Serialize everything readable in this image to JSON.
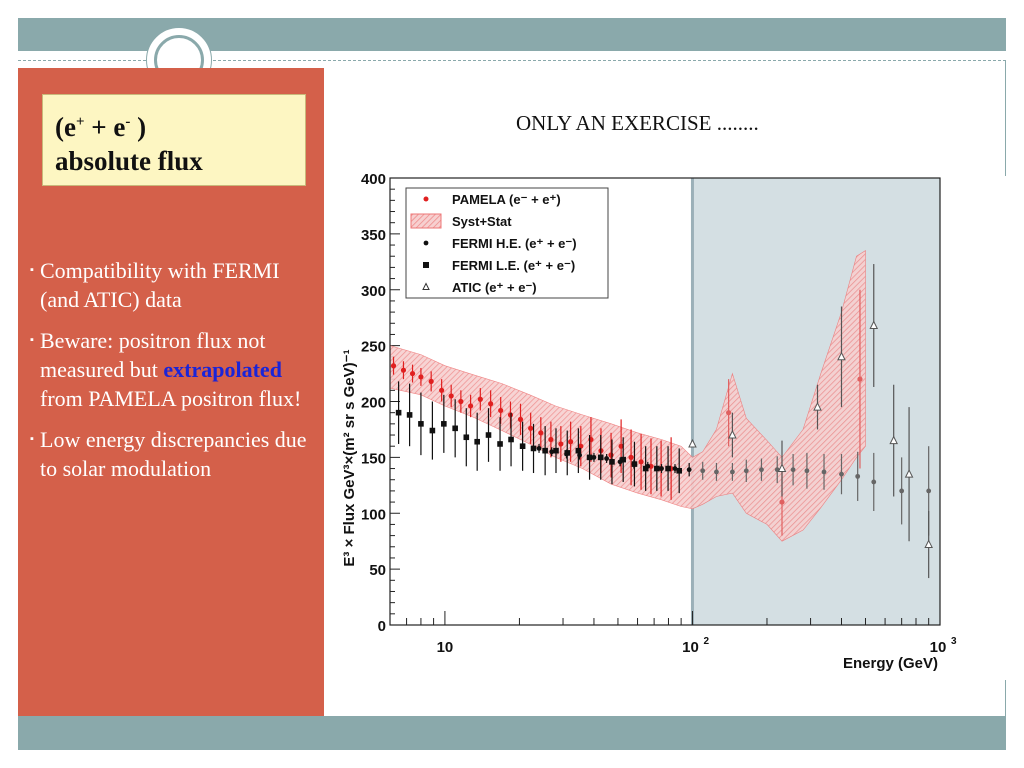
{
  "slide": {
    "title_line1_prefix": "(e",
    "title_sup1": "+",
    "title_mid": " + e",
    "title_sup2": "-",
    "title_end": " )",
    "title_line2": "absolute flux",
    "heading": "ONLY AN EXERCISE ........",
    "bullet_marker": "▪",
    "bullets": [
      {
        "text": "Compatibility with FERMI (and ATIC) data"
      },
      {
        "pre": "Beware: positron flux not measured but ",
        "emph": "extrapolated",
        "post": " from PAMELA positron flux!"
      },
      {
        "text": "Low energy discrepancies due to solar modulation"
      }
    ],
    "colors": {
      "accent": "#8aa9ab",
      "sidebar": "#d4604a",
      "title_box": "#fdf6c2",
      "emphasis": "#1a24d8"
    }
  },
  "chart_data": {
    "type": "scatter",
    "x_scale": "log",
    "xlim": [
      6,
      1000
    ],
    "ylim": [
      0,
      400
    ],
    "y_ticks": [
      "0",
      "50",
      "100",
      "150",
      "200",
      "250",
      "300",
      "350",
      "400"
    ],
    "x_tick_labels": [
      {
        "value": 10,
        "base": "10",
        "exp": ""
      },
      {
        "value": 100,
        "base": "10",
        "exp": "2"
      },
      {
        "value": 1000,
        "base": "10",
        "exp": "3"
      }
    ],
    "xlabel": "Energy (GeV)",
    "ylabel": "E³ × Flux GeV³×(m² sr s GeV)⁻¹",
    "shaded_region_x": [
      100,
      1000
    ],
    "legend_position": "top-left",
    "legend": [
      {
        "label": "PAMELA (e⁻ + e⁺)",
        "marker": "red-dot"
      },
      {
        "label": "Syst+Stat",
        "marker": "red-hatched-band"
      },
      {
        "label": "FERMI H.E. (e⁺ + e⁻)",
        "marker": "black-dot"
      },
      {
        "label": "FERMI L.E. (e⁺ + e⁻)",
        "marker": "black-square"
      },
      {
        "label": "ATIC (e⁺ + e⁻)",
        "marker": "open-triangle"
      }
    ],
    "series": [
      {
        "name": "PAMELA (e⁻ + e⁺)",
        "color": "#e02020",
        "points": [
          [
            6.2,
            232,
            8
          ],
          [
            6.8,
            228,
            8
          ],
          [
            7.4,
            225,
            8
          ],
          [
            8.0,
            222,
            8
          ],
          [
            8.8,
            218,
            9
          ],
          [
            9.7,
            210,
            10
          ],
          [
            10.6,
            205,
            10
          ],
          [
            11.6,
            200,
            10
          ],
          [
            12.7,
            196,
            10
          ],
          [
            13.9,
            202,
            10
          ],
          [
            15.3,
            198,
            12
          ],
          [
            16.8,
            192,
            12
          ],
          [
            18.4,
            188,
            12
          ],
          [
            20.2,
            184,
            14
          ],
          [
            22.2,
            176,
            14
          ],
          [
            24.4,
            172,
            14
          ],
          [
            26.8,
            166,
            16
          ],
          [
            29.4,
            162,
            16
          ],
          [
            32.2,
            164,
            18
          ],
          [
            35.4,
            160,
            18
          ],
          [
            38.9,
            166,
            20
          ],
          [
            42.7,
            156,
            20
          ],
          [
            46.9,
            152,
            20
          ],
          [
            51.5,
            160,
            24
          ],
          [
            56.5,
            150,
            25
          ],
          [
            62,
            146,
            25
          ],
          [
            68,
            142,
            25
          ],
          [
            74.7,
            140,
            25
          ],
          [
            82,
            140,
            28
          ],
          [
            140,
            190,
            30
          ],
          [
            230,
            110,
            30
          ],
          [
            475,
            220,
            80
          ]
        ]
      },
      {
        "name": "Syst+Stat",
        "color": "#f0a0a0",
        "band_x": [
          6,
          8,
          10,
          13,
          17,
          22,
          28,
          36,
          47,
          60,
          75,
          90,
          100,
          110,
          125,
          145,
          165,
          200,
          230,
          280,
          330,
          400,
          460,
          500
        ],
        "band_low": [
          212,
          206,
          196,
          186,
          174,
          162,
          150,
          140,
          126,
          118,
          112,
          106,
          104,
          108,
          115,
          118,
          100,
          90,
          75,
          85,
          105,
          130,
          150,
          160
        ],
        "band_high": [
          250,
          242,
          232,
          224,
          216,
          206,
          196,
          188,
          180,
          172,
          166,
          160,
          150,
          155,
          175,
          225,
          185,
          165,
          150,
          175,
          225,
          280,
          330,
          335
        ]
      },
      {
        "name": "FERMI L.E. (e⁺ + e⁻)",
        "color": "#111111",
        "points": [
          [
            6.5,
            190,
            28
          ],
          [
            7.2,
            188,
            28
          ],
          [
            8.0,
            180,
            28
          ],
          [
            8.9,
            174,
            26
          ],
          [
            9.9,
            180,
            26
          ],
          [
            11.0,
            176,
            26
          ],
          [
            12.2,
            168,
            26
          ],
          [
            13.5,
            164,
            26
          ],
          [
            15.0,
            170,
            24
          ],
          [
            16.7,
            162,
            24
          ],
          [
            18.5,
            166,
            24
          ],
          [
            20.6,
            160,
            22
          ],
          [
            22.8,
            158,
            22
          ],
          [
            25.4,
            156,
            22
          ],
          [
            28.1,
            156,
            20
          ],
          [
            31.2,
            154,
            20
          ],
          [
            34.6,
            156,
            20
          ],
          [
            38.4,
            150,
            20
          ],
          [
            42.6,
            150,
            20
          ],
          [
            47.3,
            146,
            20
          ],
          [
            52.5,
            148,
            20
          ],
          [
            58.3,
            144,
            20
          ],
          [
            64.7,
            140,
            20
          ],
          [
            71.8,
            140,
            20
          ],
          [
            79.7,
            140,
            20
          ],
          [
            88.4,
            138,
            20
          ]
        ]
      },
      {
        "name": "FERMI H.E. (e⁺ + e⁻)",
        "color": "#111111",
        "points": [
          [
            24,
            158,
            4
          ],
          [
            27,
            155,
            4
          ],
          [
            31,
            153,
            4
          ],
          [
            35,
            152,
            4
          ],
          [
            40,
            150,
            4
          ],
          [
            45,
            149,
            4
          ],
          [
            51,
            146,
            4
          ],
          [
            58,
            144,
            4
          ],
          [
            66,
            142,
            4
          ],
          [
            75,
            140,
            4
          ],
          [
            85,
            140,
            4
          ],
          [
            97,
            139,
            6
          ],
          [
            110,
            138,
            8
          ],
          [
            125,
            137,
            8
          ],
          [
            145,
            137,
            8
          ],
          [
            165,
            138,
            10
          ],
          [
            190,
            139,
            10
          ],
          [
            220,
            139,
            12
          ],
          [
            255,
            139,
            14
          ],
          [
            290,
            138,
            16
          ],
          [
            340,
            137,
            16
          ],
          [
            400,
            135,
            18
          ],
          [
            465,
            133,
            22
          ],
          [
            540,
            128,
            26
          ],
          [
            700,
            120,
            30
          ],
          [
            900,
            120,
            40
          ]
        ]
      },
      {
        "name": "ATIC (e⁺ + e⁻)",
        "color": "#555555",
        "points": [
          [
            100,
            162,
            0
          ],
          [
            145,
            170,
            20
          ],
          [
            230,
            140,
            25
          ],
          [
            320,
            195,
            20
          ],
          [
            400,
            240,
            45
          ],
          [
            540,
            268,
            55
          ],
          [
            650,
            165,
            50
          ],
          [
            750,
            135,
            60
          ],
          [
            900,
            72,
            30
          ]
        ]
      }
    ]
  }
}
